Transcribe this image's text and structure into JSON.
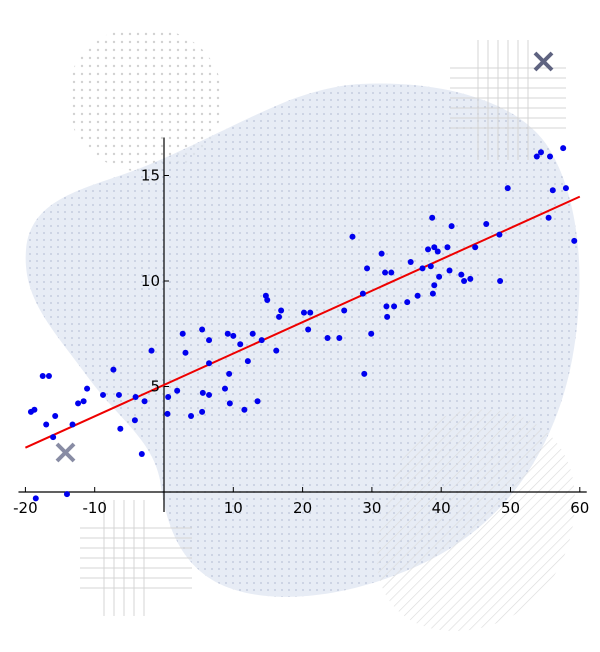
{
  "colors": {
    "points": "#0000ee",
    "fit_line": "#ee0000",
    "axes": "#000000",
    "blob": "#d7dfee",
    "marker": "#6a6f86"
  },
  "chart_data": {
    "type": "scatter",
    "title": "",
    "xlabel": "",
    "ylabel": "",
    "xlim": [
      -21,
      61
    ],
    "ylim": [
      0,
      16.8
    ],
    "grid": false,
    "legend": "none",
    "x_ticks": [
      -20,
      -10,
      10,
      20,
      30,
      40,
      50,
      60
    ],
    "y_ticks": [
      5,
      10,
      15
    ],
    "x_tick_labels": [
      "-20",
      "-10",
      "10",
      "20",
      "30",
      "40",
      "50",
      "60"
    ],
    "y_tick_labels": [
      "5",
      "10",
      "15"
    ],
    "points": [
      {
        "x": -19.2,
        "y": 3.8
      },
      {
        "x": -18.7,
        "y": 3.9
      },
      {
        "x": -17.5,
        "y": 5.5
      },
      {
        "x": -16.6,
        "y": 5.5
      },
      {
        "x": -17.0,
        "y": 3.2
      },
      {
        "x": -15.7,
        "y": 3.6
      },
      {
        "x": -16.0,
        "y": 2.6
      },
      {
        "x": -13.2,
        "y": 3.2
      },
      {
        "x": -12.4,
        "y": 4.2
      },
      {
        "x": -11.6,
        "y": 4.3
      },
      {
        "x": -11.1,
        "y": 4.9
      },
      {
        "x": -8.8,
        "y": 4.6
      },
      {
        "x": -7.3,
        "y": 5.8
      },
      {
        "x": -6.5,
        "y": 4.6
      },
      {
        "x": -6.3,
        "y": 3.0
      },
      {
        "x": -4.2,
        "y": 3.4
      },
      {
        "x": -4.1,
        "y": 4.5
      },
      {
        "x": -3.2,
        "y": 1.8
      },
      {
        "x": -2.8,
        "y": 4.3
      },
      {
        "x": -1.8,
        "y": 6.7
      },
      {
        "x": 0.5,
        "y": 3.7
      },
      {
        "x": 0.6,
        "y": 4.5
      },
      {
        "x": 1.9,
        "y": 4.8
      },
      {
        "x": 2.7,
        "y": 7.5
      },
      {
        "x": 3.1,
        "y": 6.6
      },
      {
        "x": 3.9,
        "y": 3.6
      },
      {
        "x": 5.5,
        "y": 7.7
      },
      {
        "x": 5.6,
        "y": 4.7
      },
      {
        "x": 5.5,
        "y": 3.8
      },
      {
        "x": 6.5,
        "y": 7.2
      },
      {
        "x": 6.5,
        "y": 6.1
      },
      {
        "x": 6.5,
        "y": 4.6
      },
      {
        "x": 8.8,
        "y": 4.9
      },
      {
        "x": 9.2,
        "y": 7.5
      },
      {
        "x": 9.4,
        "y": 5.6
      },
      {
        "x": 9.5,
        "y": 4.2
      },
      {
        "x": 10.0,
        "y": 7.4
      },
      {
        "x": 11.0,
        "y": 7.0
      },
      {
        "x": 11.6,
        "y": 3.9
      },
      {
        "x": 12.1,
        "y": 6.2
      },
      {
        "x": 12.8,
        "y": 7.5
      },
      {
        "x": 13.5,
        "y": 4.3
      },
      {
        "x": 14.1,
        "y": 7.2
      },
      {
        "x": 14.7,
        "y": 9.3
      },
      {
        "x": 14.9,
        "y": 9.1
      },
      {
        "x": 16.2,
        "y": 6.7
      },
      {
        "x": 16.6,
        "y": 8.3
      },
      {
        "x": 16.9,
        "y": 8.6
      },
      {
        "x": 20.2,
        "y": 8.5
      },
      {
        "x": 20.8,
        "y": 7.7
      },
      {
        "x": 21.1,
        "y": 8.5
      },
      {
        "x": 23.6,
        "y": 7.3
      },
      {
        "x": 25.3,
        "y": 7.3
      },
      {
        "x": 26.0,
        "y": 8.6
      },
      {
        "x": 27.2,
        "y": 12.1
      },
      {
        "x": 28.7,
        "y": 9.4
      },
      {
        "x": 28.9,
        "y": 5.6
      },
      {
        "x": 29.3,
        "y": 10.6
      },
      {
        "x": 29.9,
        "y": 7.5
      },
      {
        "x": 31.4,
        "y": 11.3
      },
      {
        "x": 31.9,
        "y": 10.4
      },
      {
        "x": 32.1,
        "y": 8.8
      },
      {
        "x": 32.2,
        "y": 8.3
      },
      {
        "x": 32.8,
        "y": 10.4
      },
      {
        "x": 33.2,
        "y": 8.8
      },
      {
        "x": 35.1,
        "y": 9.0
      },
      {
        "x": 35.6,
        "y": 10.9
      },
      {
        "x": 36.6,
        "y": 9.3
      },
      {
        "x": 37.3,
        "y": 10.6
      },
      {
        "x": 38.1,
        "y": 11.5
      },
      {
        "x": 38.5,
        "y": 10.7
      },
      {
        "x": 38.7,
        "y": 13.0
      },
      {
        "x": 38.8,
        "y": 9.4
      },
      {
        "x": 39.0,
        "y": 11.6
      },
      {
        "x": 39.0,
        "y": 9.8
      },
      {
        "x": 39.5,
        "y": 11.4
      },
      {
        "x": 39.7,
        "y": 10.2
      },
      {
        "x": 40.9,
        "y": 11.6
      },
      {
        "x": 41.2,
        "y": 10.5
      },
      {
        "x": 41.5,
        "y": 12.6
      },
      {
        "x": 42.9,
        "y": 10.3
      },
      {
        "x": 43.3,
        "y": 10.0
      },
      {
        "x": 44.2,
        "y": 10.1
      },
      {
        "x": 44.9,
        "y": 11.6
      },
      {
        "x": 46.5,
        "y": 12.7
      },
      {
        "x": 48.4,
        "y": 12.2
      },
      {
        "x": 48.5,
        "y": 10.0
      },
      {
        "x": 49.6,
        "y": 14.4
      },
      {
        "x": 53.8,
        "y": 15.9
      },
      {
        "x": 54.4,
        "y": 16.1
      },
      {
        "x": 55.5,
        "y": 13.0
      },
      {
        "x": 55.7,
        "y": 15.9
      },
      {
        "x": 56.1,
        "y": 14.3
      },
      {
        "x": 57.6,
        "y": 16.3
      },
      {
        "x": 58.0,
        "y": 14.4
      },
      {
        "x": 59.2,
        "y": 11.9
      },
      {
        "x": -18.5,
        "y": -0.3
      },
      {
        "x": -14.0,
        "y": -0.1
      }
    ],
    "fit_line": {
      "x": [
        -20,
        60
      ],
      "y": [
        2.1,
        14.0
      ]
    }
  }
}
